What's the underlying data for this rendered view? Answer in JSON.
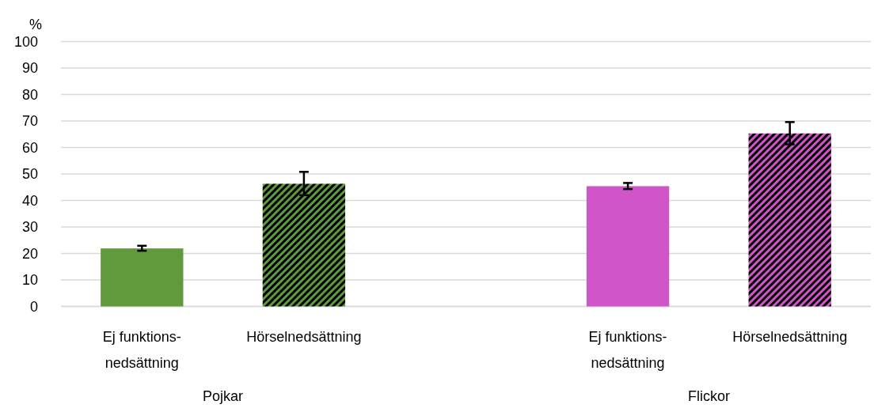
{
  "chart_data": {
    "type": "bar",
    "ylabel": "%",
    "categories": [
      "Ej funktions-nedsättning",
      "Hörselnedsättning",
      "Ej funktions-nedsättning",
      "Hörselnedsättning"
    ],
    "values": [
      21.9,
      46.3,
      45.4,
      65.3
    ],
    "colors": [
      "#609a3c",
      "#609a3c",
      "#d055c8",
      "#d055c8"
    ],
    "errors": [
      [
        21.0,
        22.9
      ],
      [
        42.0,
        50.8
      ],
      [
        44.3,
        46.6
      ],
      [
        61.2,
        69.6
      ]
    ],
    "ylim": [
      0,
      100
    ],
    "yticks": [
      0,
      10,
      20,
      30,
      40,
      50,
      60,
      70,
      80,
      90,
      100
    ],
    "grid": "y",
    "annotations": [
      "Pojkar",
      "Flickor"
    ]
  }
}
